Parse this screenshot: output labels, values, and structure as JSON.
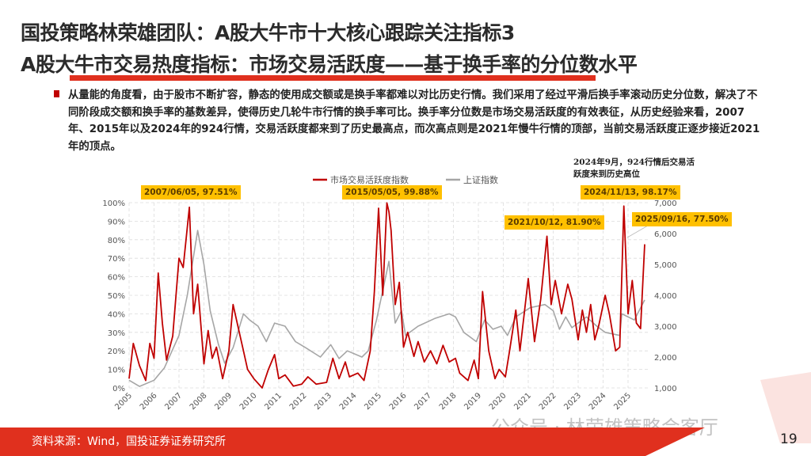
{
  "header": {
    "title_line1": "国投策略林荣雄团队：A股大牛市十大核心跟踪关注指标3",
    "title_line2": "A股大牛市交易热度指标：市场交易活跃度——基于换手率的分位数水平"
  },
  "body": {
    "paragraph": "从量能的角度看，由于股市不断扩容，静态的使用成交额或是换手率都难以对比历史行情。我们采用了经过平滑后换手率滚动历史分位数，解决了不同阶段成交额和换手率的基数差异，使得历史几轮牛市行情的换手率可比。换手率分位数是市场交易活跃度的有效表征，从历史经验来看，2007年、2015年以及2024年的924行情，交易活跃度都来到了历史最高点，而次高点则是2021年慢牛行情的顶部，当前交易活跃度正逐步接近2021年的顶点。"
  },
  "chart_data": {
    "type": "line",
    "grid": true,
    "legend_position": "top",
    "x_tick_labels": [
      "2005",
      "2006",
      "2007",
      "2008",
      "2009",
      "2010",
      "2011",
      "2012",
      "2013",
      "2014",
      "2015",
      "2016",
      "2017",
      "2018",
      "2019",
      "2020",
      "2021",
      "2022",
      "2023",
      "2024",
      "2025"
    ],
    "y_left": {
      "ylim": [
        0,
        100
      ],
      "ticks": [
        "0%",
        "10%",
        "20%",
        "30%",
        "40%",
        "50%",
        "60%",
        "70%",
        "80%",
        "90%",
        "100%"
      ]
    },
    "y_right": {
      "ylim": [
        1000,
        7000
      ],
      "ticks": [
        "1,000",
        "2,000",
        "3,000",
        "4,000",
        "5,000",
        "6,000",
        "7,000"
      ]
    },
    "series": [
      {
        "name": "市场交易活跃度指数",
        "axis": "left",
        "color": "#c00000",
        "x": [
          "2005-01",
          "2005-03",
          "2005-06",
          "2005-09",
          "2005-11",
          "2006-01",
          "2006-03",
          "2006-05",
          "2006-07",
          "2006-10",
          "2007-01",
          "2007-03",
          "2007-06",
          "2007-08",
          "2007-10",
          "2008-01",
          "2008-03",
          "2008-05",
          "2008-07",
          "2008-10",
          "2009-01",
          "2009-03",
          "2009-05",
          "2009-08",
          "2009-10",
          "2010-01",
          "2010-05",
          "2010-08",
          "2010-11",
          "2011-01",
          "2011-04",
          "2011-08",
          "2011-12",
          "2012-03",
          "2012-07",
          "2012-12",
          "2013-03",
          "2013-06",
          "2013-09",
          "2013-11",
          "2014-03",
          "2014-06",
          "2014-09",
          "2014-11",
          "2015-01",
          "2015-03",
          "2015-05",
          "2015-06",
          "2015-07",
          "2015-09",
          "2015-11",
          "2016-01",
          "2016-03",
          "2016-06",
          "2016-08",
          "2016-11",
          "2017-02",
          "2017-05",
          "2017-08",
          "2017-11",
          "2018-02",
          "2018-04",
          "2018-08",
          "2018-11",
          "2019-01",
          "2019-03",
          "2019-06",
          "2019-09",
          "2019-11",
          "2020-02",
          "2020-04",
          "2020-07",
          "2020-09",
          "2021-01",
          "2021-04",
          "2021-07",
          "2021-10",
          "2021-12",
          "2022-02",
          "2022-05",
          "2022-08",
          "2022-10",
          "2023-01",
          "2023-03",
          "2023-05",
          "2023-07",
          "2023-09",
          "2023-11",
          "2024-02",
          "2024-04",
          "2024-07",
          "2024-09",
          "2024-11",
          "2025-01",
          "2025-03",
          "2025-05",
          "2025-07",
          "2025-09"
        ],
        "values": [
          5,
          24,
          12,
          4,
          24,
          16,
          62,
          35,
          15,
          28,
          70,
          65,
          97.51,
          40,
          56,
          13,
          31,
          16,
          22,
          5,
          20,
          45,
          35,
          20,
          10,
          5,
          0,
          10,
          18,
          5,
          7,
          1,
          2,
          6,
          2,
          3,
          16,
          5,
          14,
          6,
          8,
          4,
          20,
          52,
          97,
          50,
          99.88,
          95,
          85,
          45,
          57,
          22,
          30,
          17,
          25,
          14,
          20,
          13,
          23,
          14,
          16,
          8,
          4,
          15,
          5,
          52,
          20,
          5,
          10,
          6,
          20,
          42,
          20,
          59,
          25,
          48,
          81.9,
          45,
          58,
          40,
          56,
          48,
          26,
          42,
          30,
          45,
          26,
          34,
          50,
          40,
          20,
          22,
          98.17,
          40,
          58,
          35,
          32,
          77.5
        ]
      },
      {
        "name": "上证指数",
        "axis": "right",
        "color": "#a6a6a6",
        "x": [
          "2005-01",
          "2005-06",
          "2006-01",
          "2006-06",
          "2007-01",
          "2007-05",
          "2007-10",
          "2008-01",
          "2008-04",
          "2008-08",
          "2008-11",
          "2009-03",
          "2009-08",
          "2009-11",
          "2010-03",
          "2010-07",
          "2010-11",
          "2011-04",
          "2011-09",
          "2012-02",
          "2012-09",
          "2013-02",
          "2013-06",
          "2013-10",
          "2014-05",
          "2014-08",
          "2014-12",
          "2015-06",
          "2015-09",
          "2015-12",
          "2016-02",
          "2016-08",
          "2017-04",
          "2017-11",
          "2018-02",
          "2018-06",
          "2018-12",
          "2019-04",
          "2019-08",
          "2019-12",
          "2020-03",
          "2020-07",
          "2021-02",
          "2021-09",
          "2022-01",
          "2022-04",
          "2022-07",
          "2022-10",
          "2023-05",
          "2023-10",
          "2024-02",
          "2024-09",
          "2024-10",
          "2025-04",
          "2025-09"
        ],
        "values": [
          1250,
          1050,
          1250,
          1650,
          2700,
          4000,
          6100,
          5000,
          3500,
          2400,
          1800,
          2300,
          3400,
          3200,
          3000,
          2500,
          3100,
          3000,
          2500,
          2300,
          2000,
          2400,
          1950,
          2200,
          2000,
          2200,
          3200,
          5100,
          3100,
          3500,
          2700,
          3000,
          3250,
          3400,
          3300,
          2800,
          2500,
          3200,
          2900,
          3000,
          2700,
          3300,
          3600,
          3700,
          3500,
          2900,
          3300,
          2950,
          3300,
          3000,
          2800,
          2700,
          3400,
          3200,
          3850
        ]
      }
    ],
    "annotations": [
      {
        "label": "2007/06/05, 97.51%"
      },
      {
        "label": "2015/05/05, 99.88%"
      },
      {
        "label": "2021/10/12, 81.90%"
      },
      {
        "label": "2024/11/13, 98.17%"
      },
      {
        "label": "2025/09/16, 77.50%"
      }
    ],
    "note": "2024年9月，924行情后交易活跃度来到历史高位"
  },
  "footer": {
    "source": "资料来源：Wind，国投证券证券研究所",
    "page_number": "19",
    "watermark": "公众号 · 林荣雄策略会客厅",
    "accent_color": "#e0301e"
  }
}
